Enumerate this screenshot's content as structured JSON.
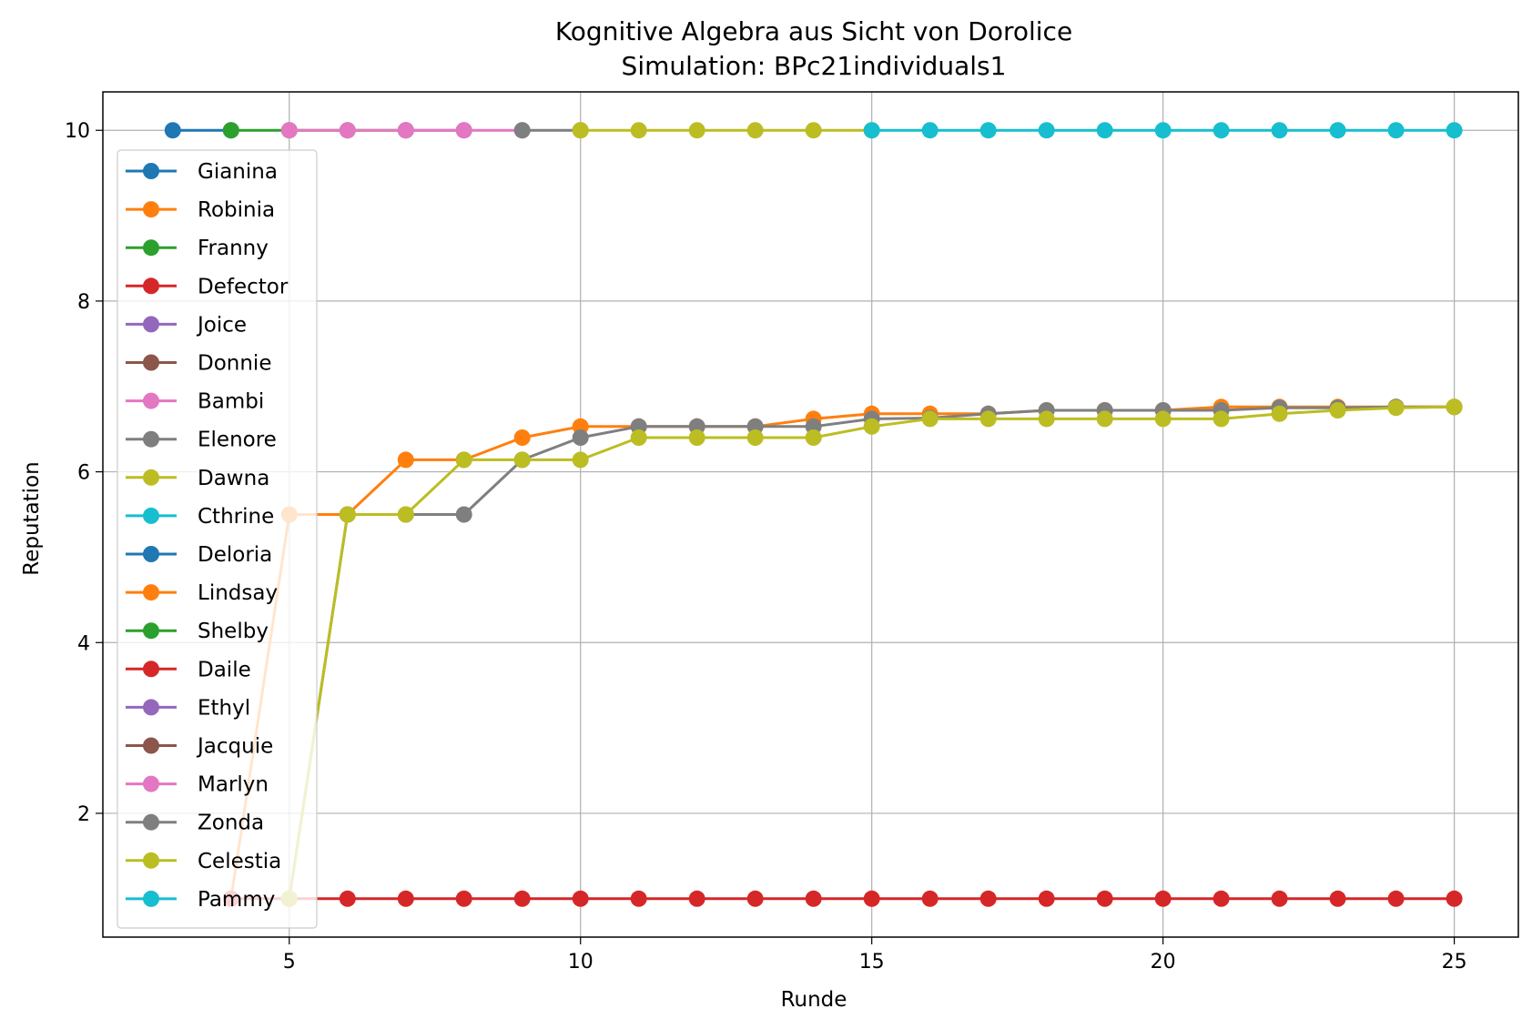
{
  "chart_data": {
    "type": "line",
    "title": "Kognitive Algebra aus Sicht von Dorolice",
    "subtitle": "Simulation: BPc21individuals1",
    "xlabel": "Runde",
    "ylabel": "Reputation",
    "xlim": [
      1.8,
      26.1
    ],
    "ylim": [
      0.55,
      10.45
    ],
    "xticks": [
      5,
      10,
      15,
      20,
      25
    ],
    "yticks": [
      2,
      4,
      6,
      8,
      10
    ],
    "grid": true,
    "legend_position": "upper-left",
    "series": [
      {
        "name": "Gianina",
        "color": "#1f77b4",
        "x": [
          3,
          4
        ],
        "y": [
          10,
          10
        ]
      },
      {
        "name": "Robinia",
        "color": "#ff7f0e",
        "x": [],
        "y": []
      },
      {
        "name": "Franny",
        "color": "#2ca02c",
        "x": [
          4,
          5,
          6,
          7
        ],
        "y": [
          10,
          10,
          10,
          10
        ]
      },
      {
        "name": "Defector",
        "color": "#d62728",
        "x": [],
        "y": []
      },
      {
        "name": "Joice",
        "color": "#9467bd",
        "x": [
          7,
          8
        ],
        "y": [
          10,
          10
        ]
      },
      {
        "name": "Donnie",
        "color": "#8c564b",
        "x": [],
        "y": []
      },
      {
        "name": "Bambi",
        "color": "#e377c2",
        "x": [
          5,
          6,
          7,
          8,
          9
        ],
        "y": [
          10,
          10,
          10,
          10,
          10
        ]
      },
      {
        "name": "Elenore",
        "color": "#7f7f7f",
        "x": [
          9,
          10
        ],
        "y": [
          10,
          10
        ]
      },
      {
        "name": "Dawna",
        "color": "#bcbd22",
        "x": [
          10,
          11,
          12,
          13,
          14,
          15
        ],
        "y": [
          10,
          10,
          10,
          10,
          10,
          10
        ]
      },
      {
        "name": "Cthrine",
        "color": "#17becf",
        "x": [
          15,
          16,
          17,
          18,
          19,
          20,
          21,
          22,
          23,
          24,
          25
        ],
        "y": [
          10,
          10,
          10,
          10,
          10,
          10,
          10,
          10,
          10,
          10,
          10
        ]
      },
      {
        "name": "Deloria",
        "color": "#1f77b4",
        "x": [],
        "y": []
      },
      {
        "name": "Lindsay",
        "color": "#ff7f0e",
        "x": [
          4,
          5,
          6,
          7,
          8,
          9,
          10,
          11,
          12,
          13,
          14,
          15,
          16,
          17,
          18,
          19,
          20,
          21,
          22,
          23,
          24,
          25
        ],
        "y": [
          1.0,
          5.5,
          5.5,
          6.14,
          6.14,
          6.4,
          6.53,
          6.53,
          6.53,
          6.53,
          6.62,
          6.68,
          6.68,
          6.68,
          6.72,
          6.72,
          6.72,
          6.76,
          6.76,
          6.76,
          6.76,
          6.76
        ]
      },
      {
        "name": "Shelby",
        "color": "#2ca02c",
        "x": [],
        "y": []
      },
      {
        "name": "Daile",
        "color": "#d62728",
        "x": [
          4,
          5,
          6,
          7,
          8,
          9,
          10,
          11,
          12,
          13,
          14,
          15,
          16,
          17,
          18,
          19,
          20,
          21,
          22,
          23,
          24,
          25
        ],
        "y": [
          1,
          1,
          1,
          1,
          1,
          1,
          1,
          1,
          1,
          1,
          1,
          1,
          1,
          1,
          1,
          1,
          1,
          1,
          1,
          1,
          1,
          1
        ]
      },
      {
        "name": "Ethyl",
        "color": "#9467bd",
        "x": [],
        "y": []
      },
      {
        "name": "Jacquie",
        "color": "#8c564b",
        "x": [],
        "y": []
      },
      {
        "name": "Marlyn",
        "color": "#e377c2",
        "x": [],
        "y": []
      },
      {
        "name": "Zonda",
        "color": "#7f7f7f",
        "x": [
          5,
          6,
          7,
          8,
          9,
          10,
          11,
          12,
          13,
          14,
          15,
          16,
          17,
          18,
          19,
          20,
          21,
          22,
          23,
          24,
          25
        ],
        "y": [
          1.0,
          5.5,
          5.5,
          5.5,
          6.14,
          6.4,
          6.53,
          6.53,
          6.53,
          6.53,
          6.62,
          6.63,
          6.68,
          6.72,
          6.72,
          6.72,
          6.72,
          6.75,
          6.75,
          6.76,
          6.76
        ]
      },
      {
        "name": "Celestia",
        "color": "#bcbd22",
        "x": [
          5,
          6,
          7,
          8,
          9,
          10,
          11,
          12,
          13,
          14,
          15,
          16,
          17,
          18,
          19,
          20,
          21,
          22,
          23,
          24,
          25
        ],
        "y": [
          1.0,
          5.5,
          5.5,
          6.14,
          6.14,
          6.14,
          6.4,
          6.4,
          6.4,
          6.4,
          6.53,
          6.62,
          6.62,
          6.62,
          6.62,
          6.62,
          6.62,
          6.68,
          6.72,
          6.75,
          6.76
        ]
      },
      {
        "name": "Pammy",
        "color": "#17becf",
        "x": [],
        "y": []
      }
    ]
  }
}
